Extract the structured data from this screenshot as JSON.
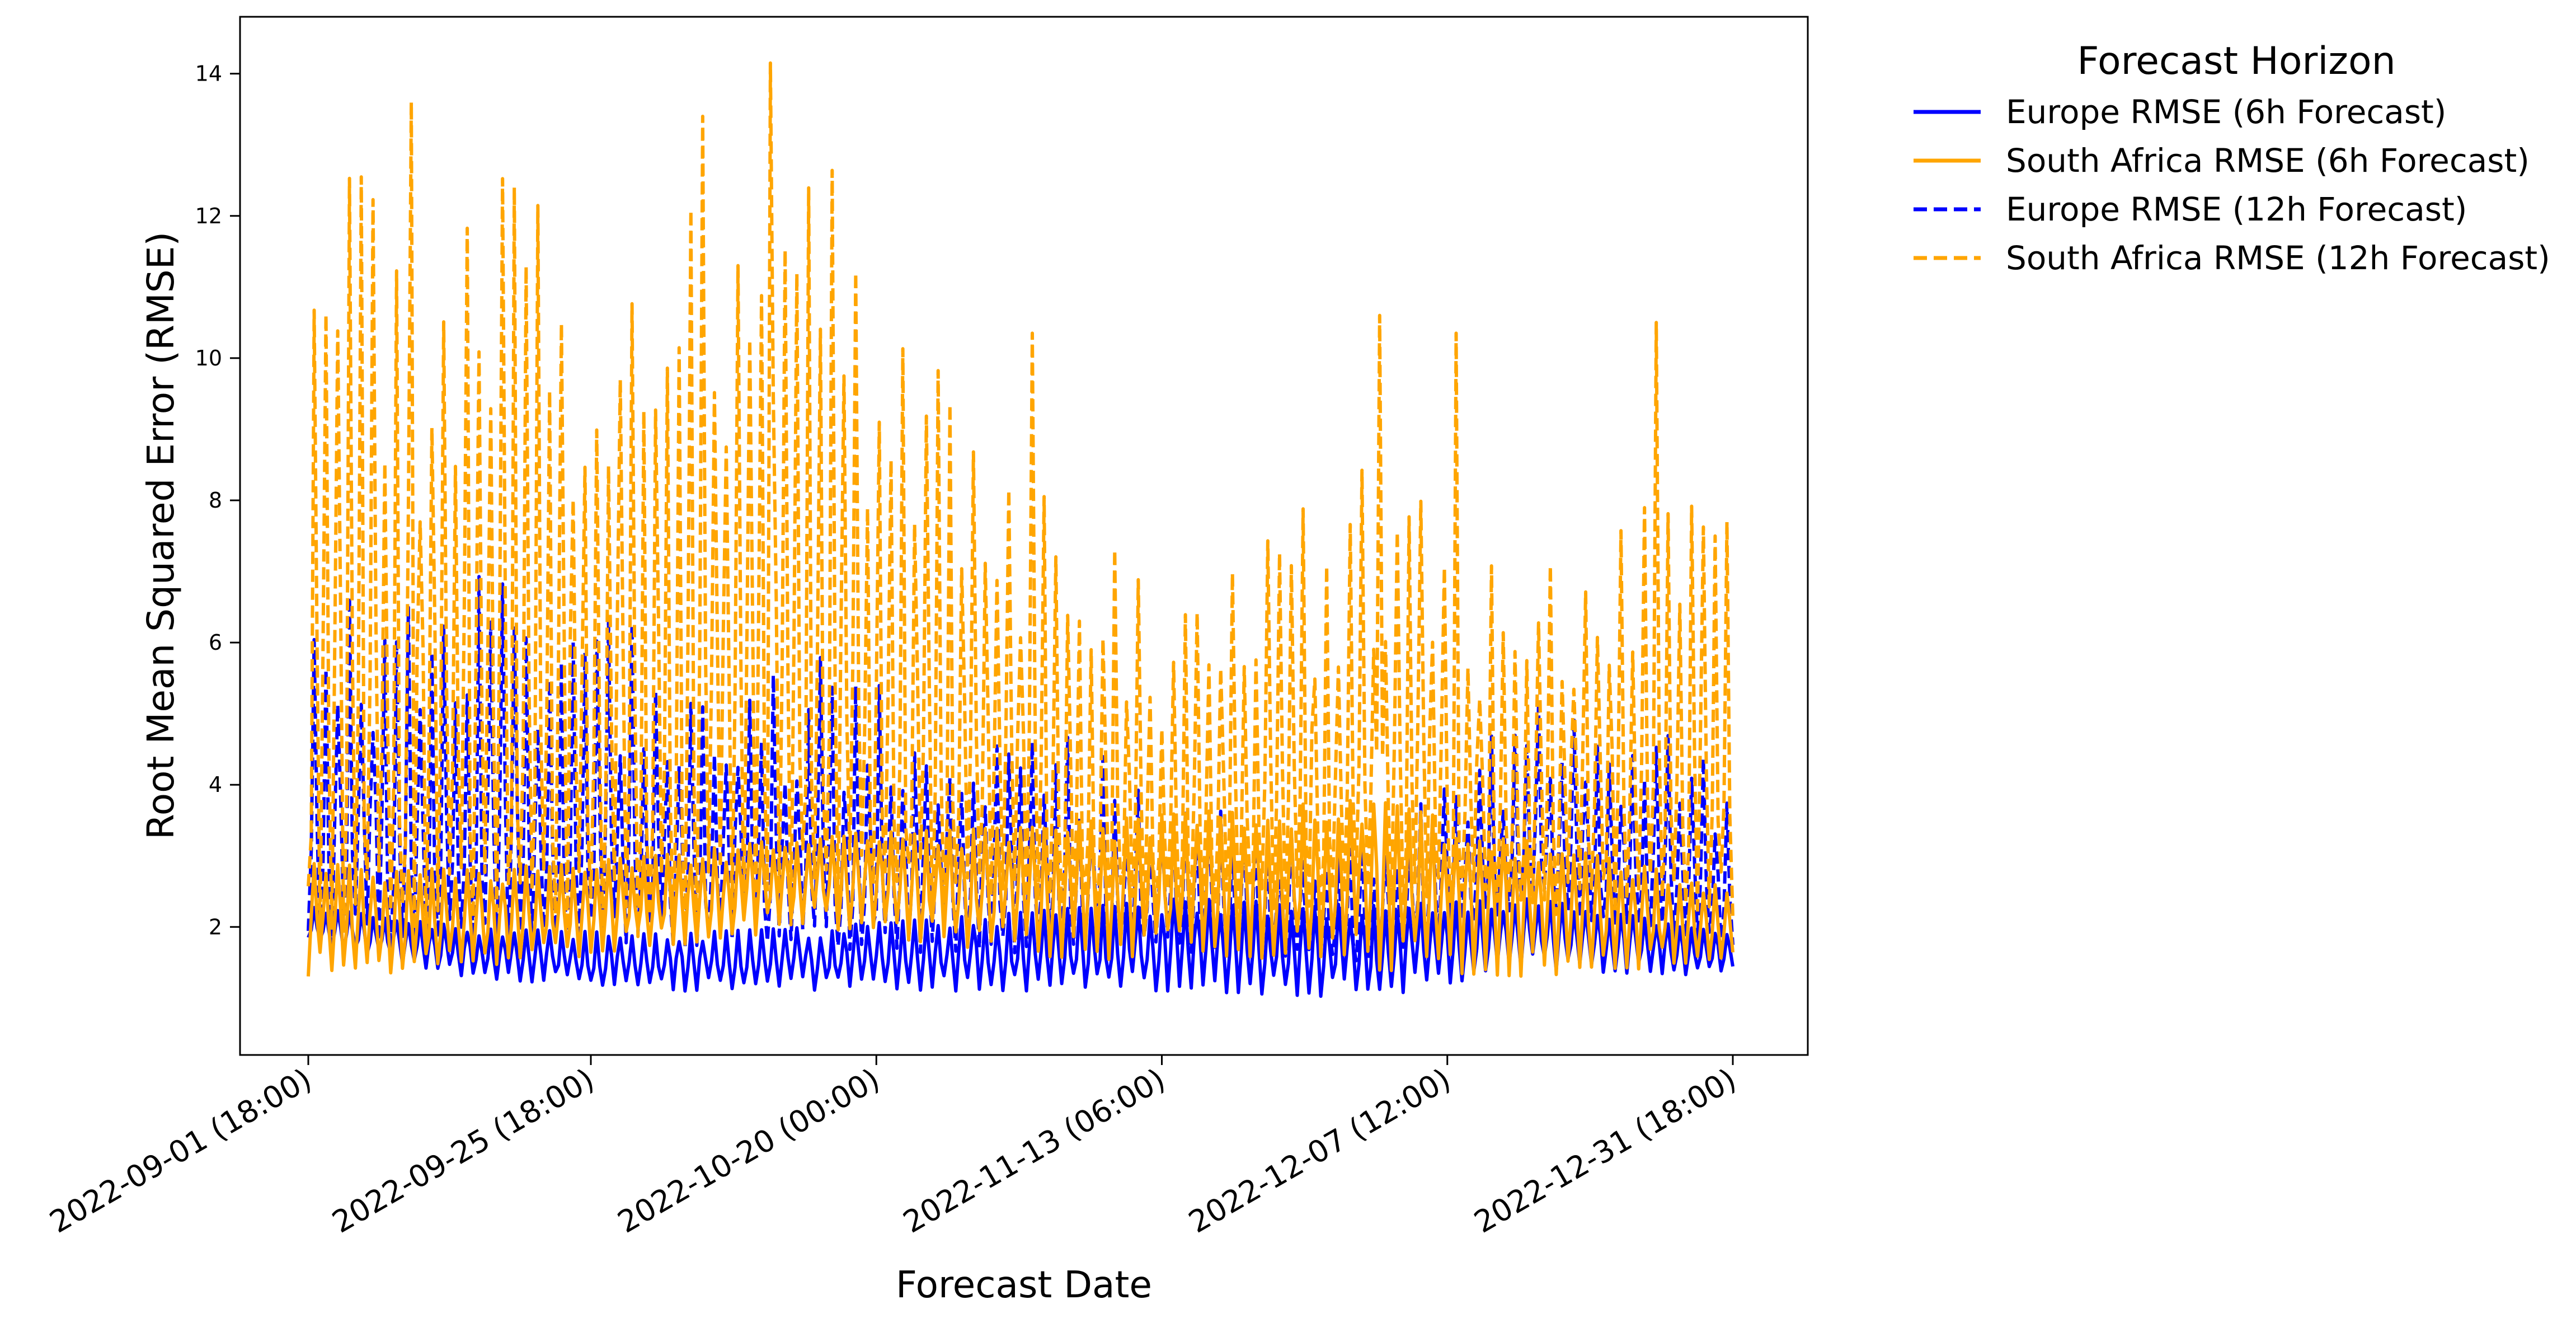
{
  "chart_data": {
    "type": "line",
    "title": "",
    "xlabel": "Forecast Date",
    "ylabel": "Root Mean Squared Error (RMSE)",
    "x_range": [
      "2022-09-01 18:00",
      "2022-12-31 18:00"
    ],
    "time_step_hours": 6,
    "ylim": [
      0.2,
      14.8
    ],
    "yticks": [
      2,
      4,
      6,
      8,
      10,
      12,
      14
    ],
    "xticks": [
      {
        "date": "2022-09-01 18:00",
        "label": "2022-09-01 (18:00)"
      },
      {
        "date": "2022-09-25 18:00",
        "label": "2022-09-25 (18:00)"
      },
      {
        "date": "2022-10-20 00:00",
        "label": "2022-10-20 (00:00)"
      },
      {
        "date": "2022-11-13 06:00",
        "label": "2022-11-13 (06:00)"
      },
      {
        "date": "2022-12-07 12:00",
        "label": "2022-12-07 (12:00)"
      },
      {
        "date": "2022-12-31 18:00",
        "label": "2022-12-31 (18:00)"
      }
    ],
    "grid": false,
    "legend": {
      "title": "Forecast Horizon",
      "placement": "outside top-right"
    },
    "series": [
      {
        "name": "Europe RMSE (6h Forecast)",
        "color": "#0000ff",
        "style": "solid",
        "forecast_hours": 6,
        "daily_envelope": [
          {
            "date": "2022-09-01",
            "low": 1.8,
            "high": 2.3
          },
          {
            "date": "2022-09-15",
            "low": 1.3,
            "high": 2.0
          },
          {
            "date": "2022-10-01",
            "low": 1.1,
            "high": 1.9
          },
          {
            "date": "2022-10-15",
            "low": 1.1,
            "high": 2.0
          },
          {
            "date": "2022-11-01",
            "low": 1.1,
            "high": 2.2
          },
          {
            "date": "2022-11-15",
            "low": 1.1,
            "high": 2.4
          },
          {
            "date": "2022-12-01",
            "low": 1.0,
            "high": 2.3
          },
          {
            "date": "2022-12-15",
            "low": 1.4,
            "high": 2.4
          },
          {
            "date": "2022-12-31",
            "low": 1.3,
            "high": 2.0
          }
        ]
      },
      {
        "name": "South Africa RMSE (6h Forecast)",
        "color": "#ffa500",
        "style": "solid",
        "forecast_hours": 6,
        "daily_envelope": [
          {
            "date": "2022-09-01",
            "low": 1.3,
            "high": 2.9
          },
          {
            "date": "2022-09-15",
            "low": 1.4,
            "high": 2.8
          },
          {
            "date": "2022-10-01",
            "low": 1.7,
            "high": 3.0
          },
          {
            "date": "2022-10-15",
            "low": 2.0,
            "high": 3.3
          },
          {
            "date": "2022-11-01",
            "low": 1.6,
            "high": 3.4
          },
          {
            "date": "2022-11-15",
            "low": 1.5,
            "high": 3.6
          },
          {
            "date": "2022-12-01",
            "low": 1.4,
            "high": 3.8
          },
          {
            "date": "2022-12-15",
            "low": 1.3,
            "high": 3.2
          },
          {
            "date": "2022-12-31",
            "low": 1.5,
            "high": 2.6
          }
        ]
      },
      {
        "name": "Europe RMSE (12h Forecast)",
        "color": "#0000ff",
        "style": "dashed",
        "forecast_hours": 12,
        "daily_envelope": [
          {
            "date": "2022-09-01",
            "low": 1.6,
            "high": 6.8
          },
          {
            "date": "2022-09-15",
            "low": 1.5,
            "high": 7.0
          },
          {
            "date": "2022-10-01",
            "low": 1.6,
            "high": 6.2
          },
          {
            "date": "2022-10-15",
            "low": 1.6,
            "high": 5.8
          },
          {
            "date": "2022-11-01",
            "low": 1.5,
            "high": 5.2
          },
          {
            "date": "2022-11-15",
            "low": 1.6,
            "high": 3.8
          },
          {
            "date": "2022-12-01",
            "low": 1.4,
            "high": 3.2
          },
          {
            "date": "2022-12-15",
            "low": 2.2,
            "high": 5.3
          },
          {
            "date": "2022-12-31",
            "low": 1.6,
            "high": 4.5
          }
        ]
      },
      {
        "name": "South Africa RMSE (12h Forecast)",
        "color": "#ffa500",
        "style": "dashed",
        "forecast_hours": 12,
        "daily_envelope": [
          {
            "date": "2022-09-01",
            "low": 1.4,
            "high": 12.5
          },
          {
            "date": "2022-09-15",
            "low": 1.5,
            "high": 12.8
          },
          {
            "date": "2022-10-01",
            "low": 1.6,
            "high": 12.0
          },
          {
            "date": "2022-10-15",
            "low": 1.8,
            "high": 13.0
          },
          {
            "date": "2022-11-01",
            "low": 2.0,
            "high": 8.5
          },
          {
            "date": "2022-11-15",
            "low": 2.0,
            "high": 6.5
          },
          {
            "date": "2022-12-01",
            "low": 2.0,
            "high": 9.0
          },
          {
            "date": "2022-12-15",
            "low": 2.0,
            "high": 7.0
          },
          {
            "date": "2022-12-31",
            "low": 2.0,
            "high": 9.0
          }
        ],
        "peaks": [
          {
            "date": "2022-09-10 12:00",
            "value": 13.6
          },
          {
            "date": "2022-10-05 06:00",
            "value": 13.4
          },
          {
            "date": "2022-10-11 00:00",
            "value": 14.15
          },
          {
            "date": "2022-11-02 06:00",
            "value": 10.35
          },
          {
            "date": "2022-12-01 18:00",
            "value": 10.6
          },
          {
            "date": "2022-12-08 06:00",
            "value": 10.35
          },
          {
            "date": "2022-12-25 06:00",
            "value": 10.5
          }
        ]
      }
    ]
  }
}
